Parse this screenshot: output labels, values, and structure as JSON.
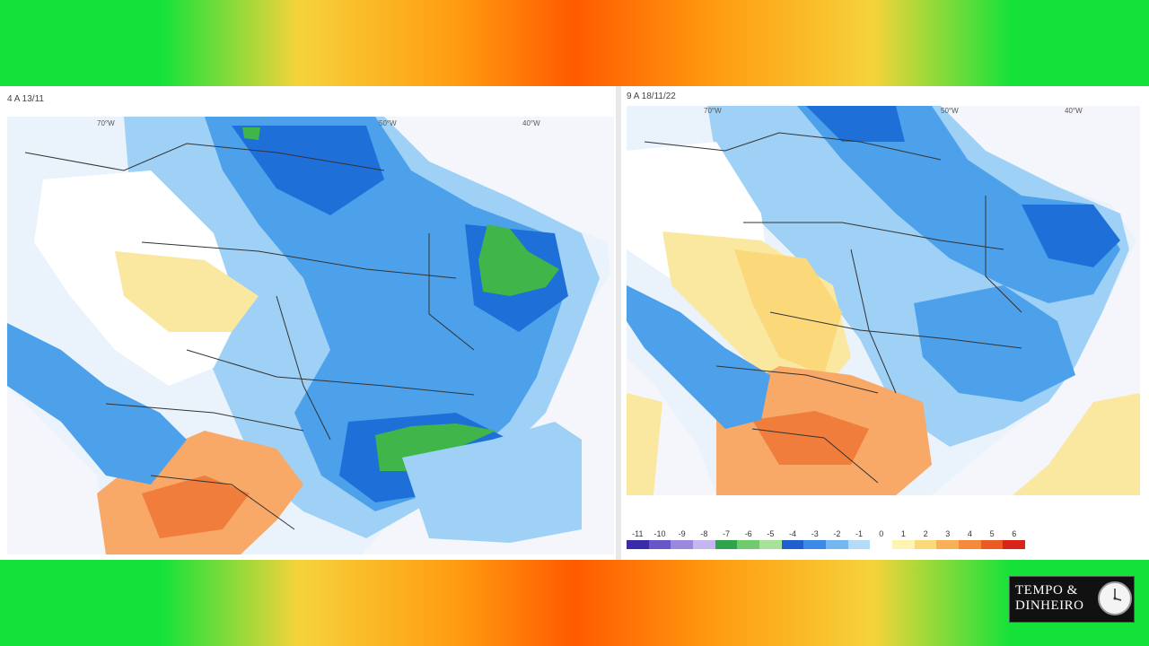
{
  "left_panel": {
    "date_label": "4 A 13/11",
    "lon_labels": [
      "70°W",
      "50°W",
      "40°W"
    ]
  },
  "right_panel": {
    "date_label": "9 A 18/11/22",
    "lon_labels": [
      "70°W",
      "50°W",
      "40°W"
    ]
  },
  "legend": {
    "values": [
      "-11",
      "-10",
      "-9",
      "-8",
      "-7",
      "-6",
      "-5",
      "-4",
      "-3",
      "-2",
      "-1",
      "0",
      "1",
      "2",
      "3",
      "4",
      "5",
      "6"
    ],
    "colors": [
      "#3a2ca8",
      "#6656c8",
      "#9a88dd",
      "#c4b6ee",
      "#2fa44a",
      "#6fcb6e",
      "#a7e29b",
      "#1f5fd0",
      "#3a8ae6",
      "#74b6f0",
      "#b4dcf8",
      "#ffffff",
      "#fff3b0",
      "#fbd97a",
      "#f9b157",
      "#f58a3c",
      "#ec5a25",
      "#d82518"
    ]
  },
  "logo": {
    "line1": "TEMPO &",
    "line2": "DINHEIRO",
    "icon": "clock-icon"
  }
}
